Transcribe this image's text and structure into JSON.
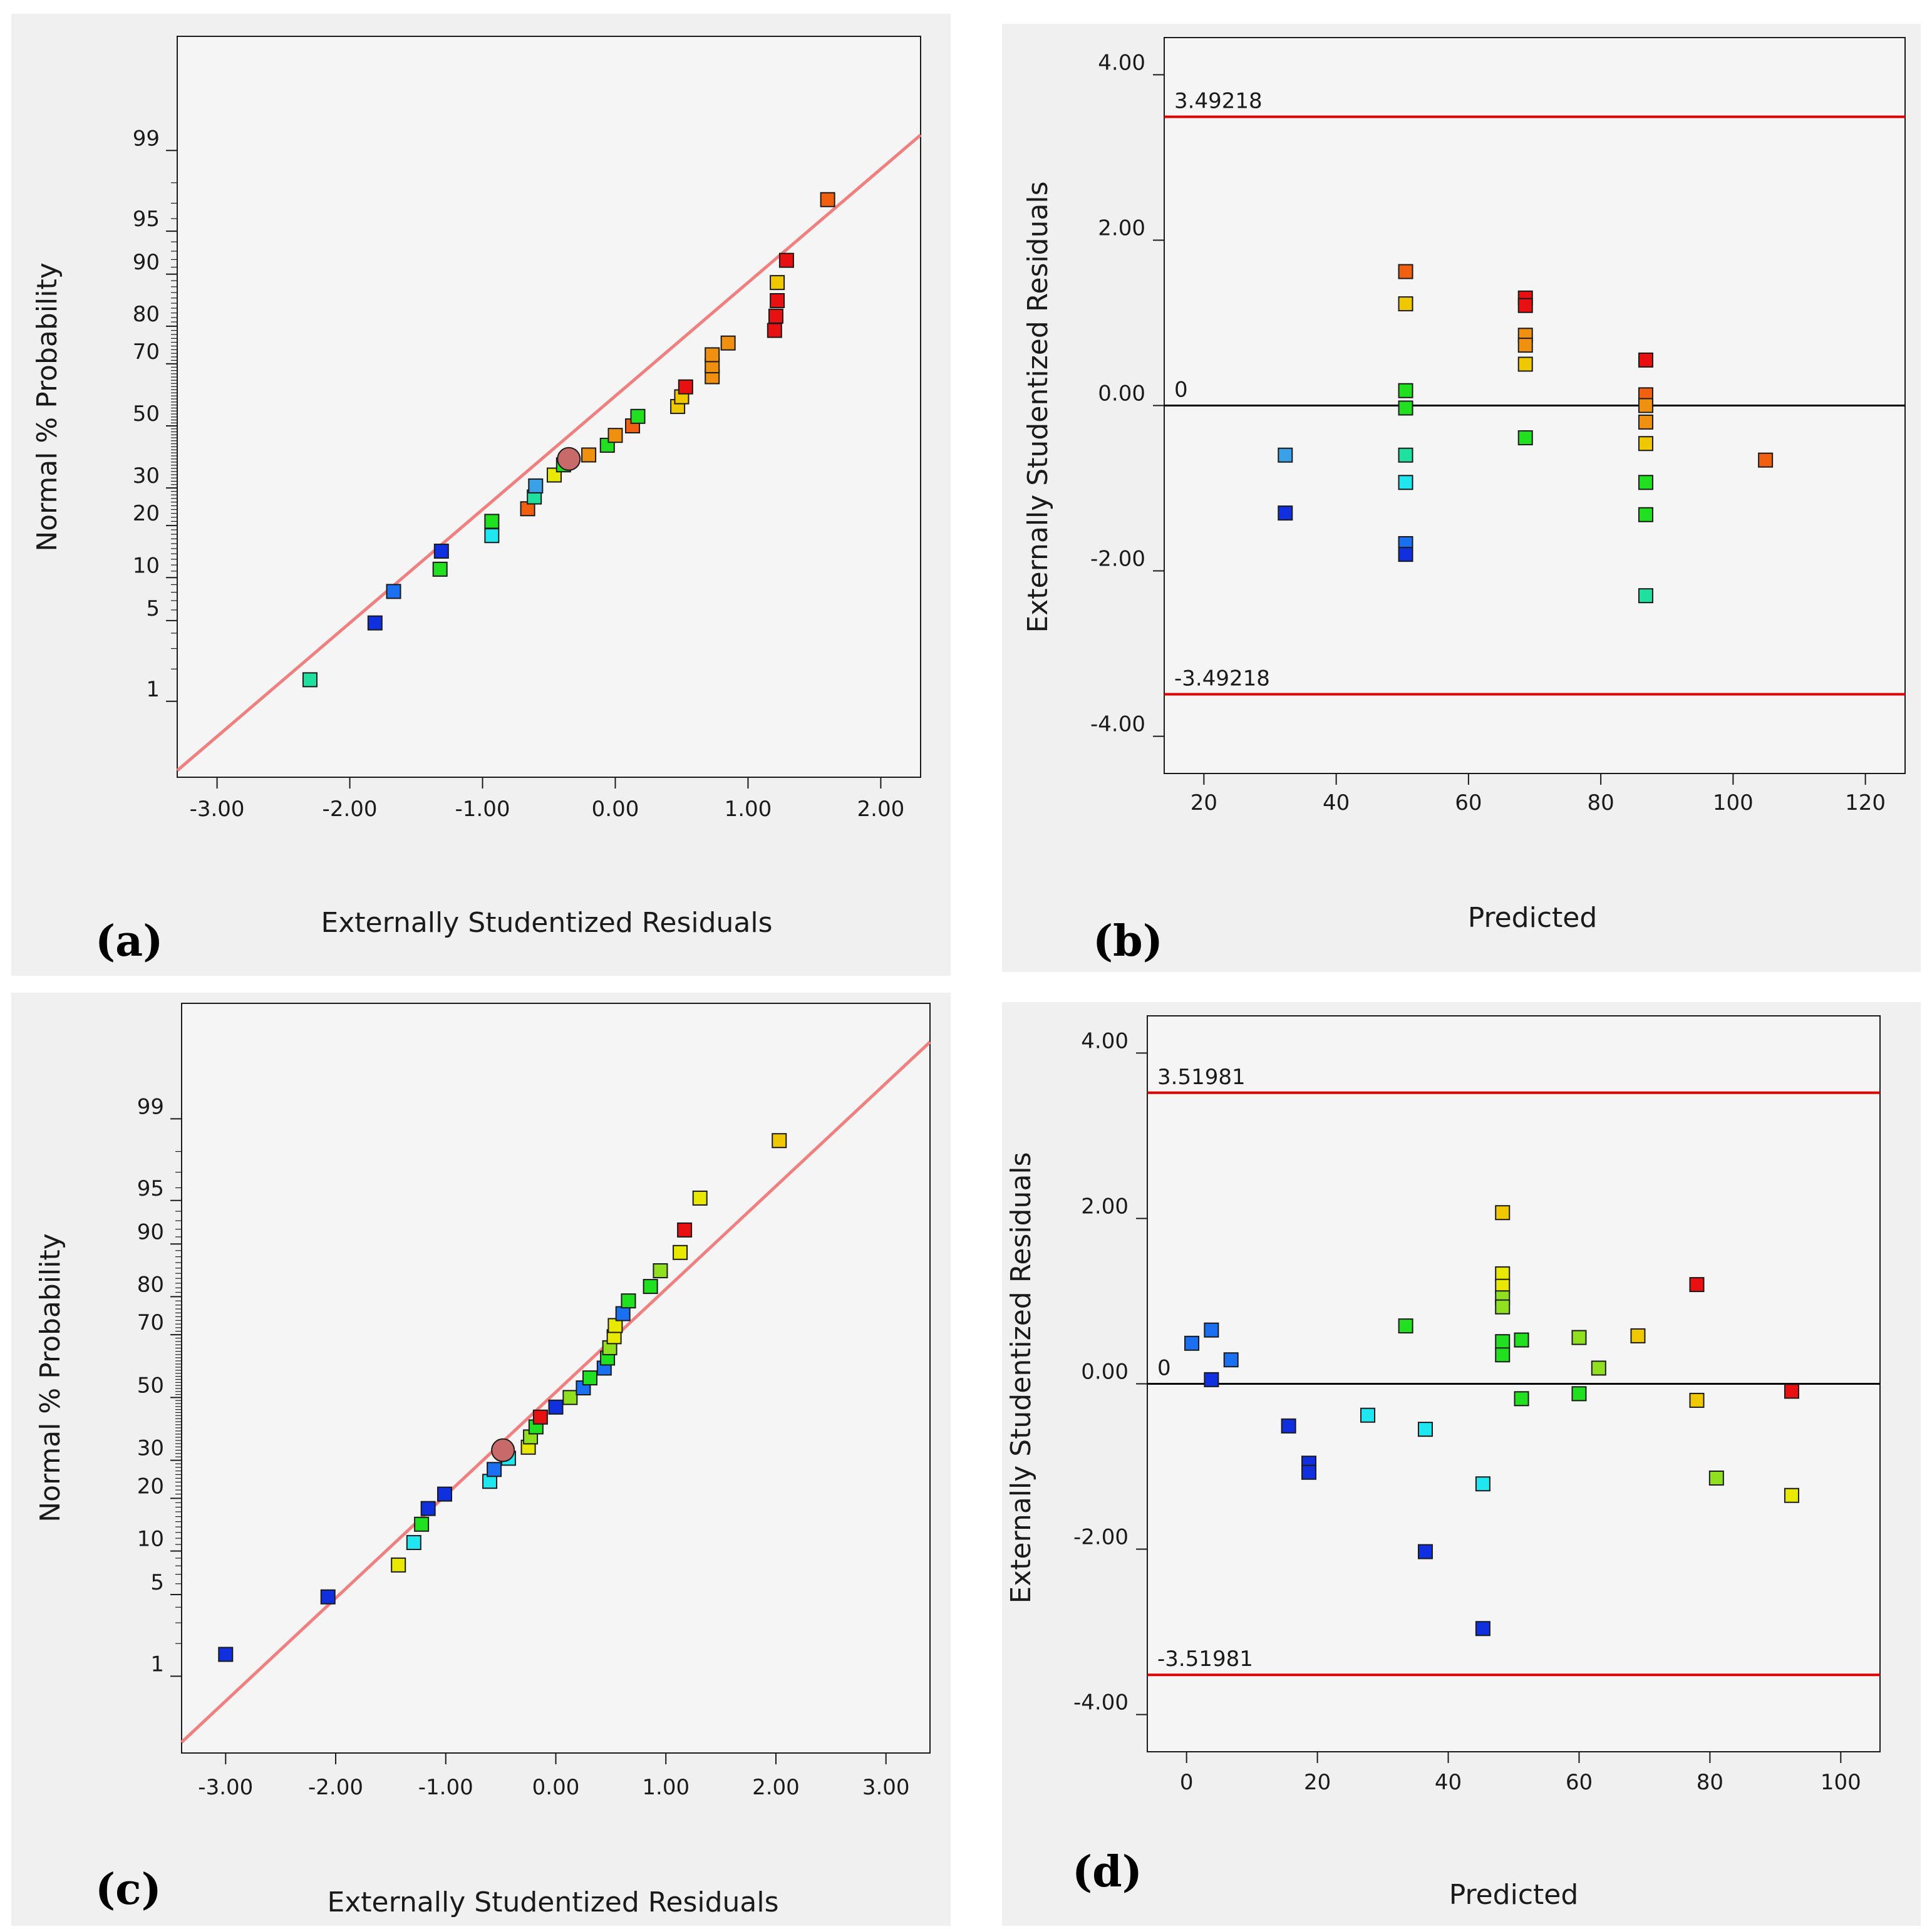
{
  "colors": {
    "panel_bg": "#f0f0f0",
    "plot_bg": "#f5f5f5",
    "fit_line": "#f08080",
    "limit_line": "#e00000",
    "zero_line": "#000000",
    "median_marker": "#c96a6a",
    "palette": {
      "blue": "#1030e0",
      "azure": "#1a70f0",
      "lightblue": "#3aa0e8",
      "cyan": "#20e6f0",
      "teal": "#20e0a0",
      "green": "#20e020",
      "lime": "#90e020",
      "yellow": "#e8e800",
      "gold": "#f0c800",
      "orange": "#f09010",
      "darkorange": "#f06010",
      "red": "#e81010"
    }
  },
  "chart_data": [
    {
      "id": "a",
      "type": "scatter",
      "panel_label": "(a)",
      "title": "",
      "xlabel": "Externally Studentized Residuals",
      "ylabel": "Normal % Probability",
      "xlim": [
        -3.3,
        2.3
      ],
      "ylim_percent": [
        0.15,
        99.95
      ],
      "x_ticks": [
        -3.0,
        -2.0,
        -1.0,
        0.0,
        1.0,
        2.0
      ],
      "x_tick_labels": [
        "-3.00",
        "-2.00",
        "-1.00",
        "0.00",
        "1.00",
        "2.00"
      ],
      "y_ticks": [
        1,
        5,
        10,
        20,
        30,
        50,
        70,
        80,
        90,
        95,
        99
      ],
      "y_tick_labels": [
        "1",
        "5",
        "10",
        "20",
        "30",
        "50",
        "70",
        "80",
        "90",
        "95",
        "99"
      ],
      "grid": false,
      "fit_line": {
        "x": [
          -3.3,
          2.3
        ],
        "p": [
          0.18,
          99.3
        ]
      },
      "median_marker": {
        "x": -0.35,
        "p": 39
      },
      "points": [
        {
          "x": -2.3,
          "p": 1.6,
          "color": "teal"
        },
        {
          "x": -1.81,
          "p": 4.8,
          "color": "blue"
        },
        {
          "x": -1.67,
          "p": 8.1,
          "color": "azure"
        },
        {
          "x": -1.32,
          "p": 11.3,
          "color": "green"
        },
        {
          "x": -1.31,
          "p": 14.5,
          "color": "blue"
        },
        {
          "x": -0.93,
          "p": 17.7,
          "color": "cyan"
        },
        {
          "x": -0.93,
          "p": 21.0,
          "color": "green"
        },
        {
          "x": -0.66,
          "p": 24.2,
          "color": "darkorange"
        },
        {
          "x": -0.61,
          "p": 27.4,
          "color": "teal"
        },
        {
          "x": -0.6,
          "p": 30.6,
          "color": "lightblue"
        },
        {
          "x": -0.46,
          "p": 33.9,
          "color": "yellow"
        },
        {
          "x": -0.39,
          "p": 37.1,
          "color": "green"
        },
        {
          "x": -0.2,
          "p": 40.3,
          "color": "orange"
        },
        {
          "x": -0.06,
          "p": 43.5,
          "color": "green"
        },
        {
          "x": 0.0,
          "p": 46.8,
          "color": "orange"
        },
        {
          "x": 0.13,
          "p": 50.0,
          "color": "darkorange"
        },
        {
          "x": 0.17,
          "p": 53.2,
          "color": "green"
        },
        {
          "x": 0.47,
          "p": 56.5,
          "color": "gold"
        },
        {
          "x": 0.5,
          "p": 59.7,
          "color": "gold"
        },
        {
          "x": 0.53,
          "p": 62.9,
          "color": "red"
        },
        {
          "x": 0.73,
          "p": 66.1,
          "color": "orange"
        },
        {
          "x": 0.73,
          "p": 69.4,
          "color": "orange"
        },
        {
          "x": 0.73,
          "p": 72.6,
          "color": "orange"
        },
        {
          "x": 0.85,
          "p": 75.8,
          "color": "orange"
        },
        {
          "x": 1.2,
          "p": 79.0,
          "color": "red"
        },
        {
          "x": 1.21,
          "p": 82.3,
          "color": "red"
        },
        {
          "x": 1.22,
          "p": 85.5,
          "color": "red"
        },
        {
          "x": 1.22,
          "p": 88.7,
          "color": "gold"
        },
        {
          "x": 1.29,
          "p": 91.9,
          "color": "red"
        },
        {
          "x": 1.6,
          "p": 97.2,
          "color": "darkorange"
        }
      ]
    },
    {
      "id": "b",
      "type": "scatter",
      "panel_label": "(b)",
      "title": "",
      "xlabel": "Predicted",
      "ylabel": "Externally Studentized Residuals",
      "xlim": [
        14,
        126
      ],
      "ylim": [
        -4.45,
        4.45
      ],
      "x_ticks": [
        20,
        40,
        60,
        80,
        100,
        120
      ],
      "x_tick_labels": [
        "20",
        "40",
        "60",
        "80",
        "100",
        "120"
      ],
      "y_ticks": [
        -4,
        -2,
        0,
        2,
        4
      ],
      "y_tick_labels": [
        "-4.00",
        "-2.00",
        "0.00",
        "2.00",
        "4.00"
      ],
      "grid": false,
      "zero_label": "0",
      "limits": {
        "upper": 3.49218,
        "lower": -3.49218,
        "upper_label": "3.49218",
        "lower_label": "-3.49218"
      },
      "points": [
        {
          "x": 32.3,
          "y": -0.6,
          "color": "lightblue"
        },
        {
          "x": 32.3,
          "y": -1.3,
          "color": "blue"
        },
        {
          "x": 50.5,
          "y": 1.62,
          "color": "darkorange"
        },
        {
          "x": 50.5,
          "y": 1.23,
          "color": "gold"
        },
        {
          "x": 50.5,
          "y": 0.18,
          "color": "green"
        },
        {
          "x": 50.5,
          "y": -0.03,
          "color": "green"
        },
        {
          "x": 50.5,
          "y": -0.6,
          "color": "teal"
        },
        {
          "x": 50.5,
          "y": -0.93,
          "color": "cyan"
        },
        {
          "x": 50.5,
          "y": -1.67,
          "color": "azure"
        },
        {
          "x": 50.5,
          "y": -1.8,
          "color": "blue"
        },
        {
          "x": 68.6,
          "y": 1.3,
          "color": "red"
        },
        {
          "x": 68.6,
          "y": 1.21,
          "color": "red"
        },
        {
          "x": 68.6,
          "y": 0.85,
          "color": "orange"
        },
        {
          "x": 68.6,
          "y": 0.73,
          "color": "orange"
        },
        {
          "x": 68.6,
          "y": 0.5,
          "color": "gold"
        },
        {
          "x": 68.6,
          "y": -0.39,
          "color": "green"
        },
        {
          "x": 86.8,
          "y": 0.55,
          "color": "red"
        },
        {
          "x": 86.8,
          "y": 0.13,
          "color": "darkorange"
        },
        {
          "x": 86.8,
          "y": 0.0,
          "color": "orange"
        },
        {
          "x": 86.8,
          "y": -0.2,
          "color": "orange"
        },
        {
          "x": 86.8,
          "y": -0.46,
          "color": "gold"
        },
        {
          "x": 86.8,
          "y": -0.93,
          "color": "green"
        },
        {
          "x": 86.8,
          "y": -1.32,
          "color": "green"
        },
        {
          "x": 86.8,
          "y": -2.3,
          "color": "teal"
        },
        {
          "x": 104.9,
          "y": -0.66,
          "color": "darkorange"
        }
      ]
    },
    {
      "id": "c",
      "type": "scatter",
      "panel_label": "(c)",
      "title": "",
      "xlabel": "Externally Studentized Residuals",
      "ylabel": "Normal % Probability",
      "xlim": [
        -3.4,
        3.4
      ],
      "ylim_percent": [
        0.15,
        99.95
      ],
      "x_ticks": [
        -3.0,
        -2.0,
        -1.0,
        0.0,
        1.0,
        2.0,
        3.0
      ],
      "x_tick_labels": [
        "-3.00",
        "-2.00",
        "-1.00",
        "0.00",
        "1.00",
        "2.00",
        "3.00"
      ],
      "y_ticks": [
        1,
        5,
        10,
        20,
        30,
        50,
        70,
        80,
        90,
        95,
        99
      ],
      "y_tick_labels": [
        "1",
        "5",
        "10",
        "20",
        "30",
        "50",
        "70",
        "80",
        "90",
        "95",
        "99"
      ],
      "grid": false,
      "fit_line": {
        "x": [
          -3.4,
          3.4
        ],
        "p": [
          0.2,
          99.85
        ]
      },
      "median_marker": {
        "x": -0.48,
        "p": 33
      },
      "points": [
        {
          "x": -3.0,
          "p": 1.6,
          "color": "blue"
        },
        {
          "x": -2.07,
          "p": 4.8,
          "color": "blue"
        },
        {
          "x": -1.43,
          "p": 8.1,
          "color": "yellow"
        },
        {
          "x": -1.29,
          "p": 11.3,
          "color": "cyan"
        },
        {
          "x": -1.22,
          "p": 14.5,
          "color": "green"
        },
        {
          "x": -1.16,
          "p": 17.7,
          "color": "blue"
        },
        {
          "x": -1.01,
          "p": 21.0,
          "color": "blue"
        },
        {
          "x": -0.6,
          "p": 24.2,
          "color": "cyan"
        },
        {
          "x": -0.56,
          "p": 27.4,
          "color": "azure"
        },
        {
          "x": -0.43,
          "p": 30.6,
          "color": "cyan"
        },
        {
          "x": -0.25,
          "p": 33.9,
          "color": "yellow"
        },
        {
          "x": -0.23,
          "p": 37.1,
          "color": "lime"
        },
        {
          "x": -0.18,
          "p": 40.3,
          "color": "green"
        },
        {
          "x": -0.14,
          "p": 43.5,
          "color": "red"
        },
        {
          "x": 0.0,
          "p": 46.8,
          "color": "blue"
        },
        {
          "x": 0.13,
          "p": 50.0,
          "color": "lime"
        },
        {
          "x": 0.25,
          "p": 53.2,
          "color": "azure"
        },
        {
          "x": 0.31,
          "p": 56.5,
          "color": "green"
        },
        {
          "x": 0.44,
          "p": 59.7,
          "color": "azure"
        },
        {
          "x": 0.47,
          "p": 62.9,
          "color": "green"
        },
        {
          "x": 0.49,
          "p": 66.1,
          "color": "lime"
        },
        {
          "x": 0.53,
          "p": 69.4,
          "color": "yellow"
        },
        {
          "x": 0.54,
          "p": 72.6,
          "color": "yellow"
        },
        {
          "x": 0.61,
          "p": 75.8,
          "color": "azure"
        },
        {
          "x": 0.66,
          "p": 79.0,
          "color": "green"
        },
        {
          "x": 0.86,
          "p": 82.3,
          "color": "green"
        },
        {
          "x": 0.95,
          "p": 85.5,
          "color": "lime"
        },
        {
          "x": 1.13,
          "p": 88.7,
          "color": "yellow"
        },
        {
          "x": 1.17,
          "p": 91.9,
          "color": "red"
        },
        {
          "x": 1.31,
          "p": 95.2,
          "color": "yellow"
        },
        {
          "x": 2.03,
          "p": 98.4,
          "color": "gold"
        }
      ]
    },
    {
      "id": "d",
      "type": "scatter",
      "panel_label": "(d)",
      "title": "",
      "xlabel": "Predicted",
      "ylabel": "Externally Studentized Residuals",
      "xlim": [
        -6,
        106
      ],
      "ylim": [
        -4.45,
        4.45
      ],
      "x_ticks": [
        0,
        20,
        40,
        60,
        80,
        100
      ],
      "x_tick_labels": [
        "0",
        "20",
        "40",
        "60",
        "80",
        "100"
      ],
      "y_ticks": [
        -4,
        -2,
        0,
        2,
        4
      ],
      "y_tick_labels": [
        "-4.00",
        "-2.00",
        "0.00",
        "2.00",
        "4.00"
      ],
      "grid": false,
      "zero_label": "0",
      "limits": {
        "upper": 3.51981,
        "lower": -3.51981,
        "upper_label": "3.51981",
        "lower_label": "-3.51981"
      },
      "points": [
        {
          "x": 0.8,
          "y": 0.49,
          "color": "azure"
        },
        {
          "x": 3.8,
          "y": 0.65,
          "color": "azure"
        },
        {
          "x": 3.8,
          "y": 0.05,
          "color": "blue"
        },
        {
          "x": 6.8,
          "y": 0.29,
          "color": "azure"
        },
        {
          "x": 15.6,
          "y": -0.51,
          "color": "blue"
        },
        {
          "x": 18.7,
          "y": -0.96,
          "color": "blue"
        },
        {
          "x": 18.7,
          "y": -1.07,
          "color": "blue"
        },
        {
          "x": 27.7,
          "y": -0.38,
          "color": "cyan"
        },
        {
          "x": 33.5,
          "y": 0.7,
          "color": "green"
        },
        {
          "x": 36.5,
          "y": -0.55,
          "color": "cyan"
        },
        {
          "x": 36.5,
          "y": -2.03,
          "color": "blue"
        },
        {
          "x": 45.3,
          "y": -1.21,
          "color": "cyan"
        },
        {
          "x": 45.3,
          "y": -2.96,
          "color": "blue"
        },
        {
          "x": 48.3,
          "y": 2.07,
          "color": "gold"
        },
        {
          "x": 48.3,
          "y": 1.33,
          "color": "yellow"
        },
        {
          "x": 48.3,
          "y": 1.18,
          "color": "yellow"
        },
        {
          "x": 48.3,
          "y": 1.04,
          "color": "lime"
        },
        {
          "x": 48.3,
          "y": 0.93,
          "color": "lime"
        },
        {
          "x": 48.3,
          "y": 0.51,
          "color": "green"
        },
        {
          "x": 48.3,
          "y": 0.35,
          "color": "green"
        },
        {
          "x": 51.2,
          "y": 0.53,
          "color": "green"
        },
        {
          "x": 51.2,
          "y": -0.18,
          "color": "green"
        },
        {
          "x": 60.0,
          "y": 0.56,
          "color": "lime"
        },
        {
          "x": 60.0,
          "y": -0.12,
          "color": "green"
        },
        {
          "x": 63.0,
          "y": 0.19,
          "color": "lime"
        },
        {
          "x": 69.0,
          "y": 0.58,
          "color": "gold"
        },
        {
          "x": 78.0,
          "y": 1.2,
          "color": "red"
        },
        {
          "x": 78.0,
          "y": -0.2,
          "color": "gold"
        },
        {
          "x": 81.0,
          "y": -1.14,
          "color": "lime"
        },
        {
          "x": 92.5,
          "y": -0.09,
          "color": "red"
        },
        {
          "x": 92.5,
          "y": -1.35,
          "color": "yellow"
        }
      ]
    }
  ]
}
